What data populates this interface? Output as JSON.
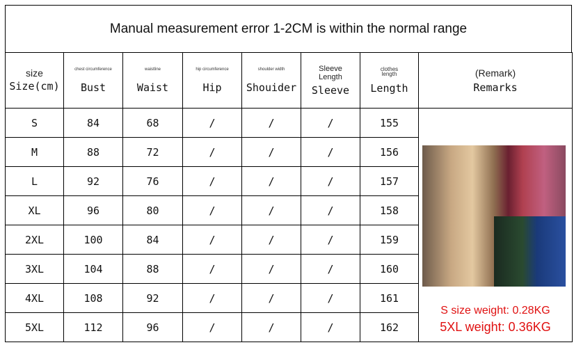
{
  "title": "Manual measurement error 1-2CM is within the normal range",
  "headers": [
    {
      "top": "size",
      "main": "Size(cm)"
    },
    {
      "top": "chest circumference",
      "main": "Bust"
    },
    {
      "top": "waistline",
      "main": "Waist"
    },
    {
      "top": "hip circumference",
      "main": "Hip"
    },
    {
      "top": "shoulder width",
      "main": "Shouider"
    },
    {
      "top": "Sleeve Length",
      "main": "Sleeve"
    },
    {
      "top": "clothes length",
      "main": "Length"
    },
    {
      "top": "(Remark)",
      "main": "Remarks"
    }
  ],
  "rows": [
    [
      "S",
      "84",
      "68",
      "/",
      "/",
      "/",
      "155"
    ],
    [
      "M",
      "88",
      "72",
      "/",
      "/",
      "/",
      "156"
    ],
    [
      "L",
      "92",
      "76",
      "/",
      "/",
      "/",
      "157"
    ],
    [
      "XL",
      "96",
      "80",
      "/",
      "/",
      "/",
      "158"
    ],
    [
      "2XL",
      "100",
      "84",
      "/",
      "/",
      "/",
      "159"
    ],
    [
      "3XL",
      "104",
      "88",
      "/",
      "/",
      "/",
      "160"
    ],
    [
      "4XL",
      "108",
      "92",
      "/",
      "/",
      "/",
      "161"
    ],
    [
      "5XL",
      "112",
      "96",
      "/",
      "/",
      "/",
      "162"
    ]
  ],
  "remarks": {
    "weight_s": "S size weight: 0.28KG",
    "weight_5xl": "5XL weight: 0.36KG",
    "weight_color": "#e01010"
  }
}
